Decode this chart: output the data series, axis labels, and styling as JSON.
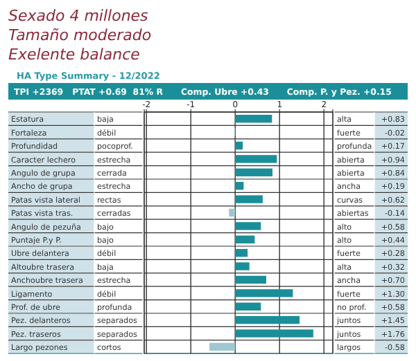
{
  "chart_data": {
    "type": "bar",
    "orientation": "horizontal",
    "title": "HA Type Summary - 12/2022",
    "subtitle": "TPI +2369   PTAT +0.69  81% R      Comp. Ubre +0.43      Comp. P. y Pez. +0.15",
    "categories": [
      "Estatura",
      "Fortaleza",
      "Profundidad",
      "Caracter lechero",
      "Angulo de grupa",
      "Ancho de grupa",
      "Patas vista lateral",
      "Patas vista tras.",
      "Angulo de pezuña",
      "Puntaje P.y P.",
      "Ubre delantera",
      "Altoubre trasera",
      "Anchoubre trasera",
      "Ligamento",
      "Prof. de ubre",
      "Pez. delanteros",
      "Pez. traseros",
      "Largo pezones"
    ],
    "values": [
      0.83,
      -0.02,
      0.17,
      0.94,
      0.84,
      0.19,
      0.62,
      -0.14,
      0.58,
      0.44,
      0.28,
      0.32,
      0.7,
      1.3,
      0.58,
      1.45,
      1.76,
      -0.58
    ],
    "value_labels": [
      "+0.83",
      "-0.02",
      "+0.17",
      "+0.94",
      "+0.84",
      "+0.19",
      "+0.62",
      "-0.14",
      "+0.58",
      "+0.44",
      "+0.28",
      "+0.32",
      "+0.70",
      "+1.30",
      "+0.58",
      "+1.45",
      "+1.76",
      "-0.58"
    ],
    "colors": [
      "#1b8f99",
      "#9fc7d0",
      "#1b8f99",
      "#1b8f99",
      "#1b8f99",
      "#1b8f99",
      "#1b8f99",
      "#9fc7d0",
      "#1b8f99",
      "#1b8f99",
      "#1b8f99",
      "#1b8f99",
      "#1b8f99",
      "#1b8f99",
      "#1b8f99",
      "#1b8f99",
      "#1b8f99",
      "#9fc7d0"
    ],
    "x2lim": [
      -2.05,
      2.2
    ],
    "x2ticks": [
      -2,
      -1,
      0,
      1,
      2
    ],
    "grid": "x",
    "annotations": [
      "Sexado 4 millones",
      "Tamaño moderado",
      "Exelente balance",
      "baja",
      "débil",
      "pocoprof.",
      "estrecha",
      "cerrada",
      "estrecha",
      "rectas",
      "cerradas",
      "bajo",
      "bajo",
      "débil",
      "baja",
      "estrecha",
      "débil",
      "profunda",
      "separados",
      "separados",
      "cortos",
      "alta",
      "fuerte",
      "profunda",
      "abierta",
      "abierta",
      "ancha",
      "curvas",
      "abiertas",
      "alto",
      "alto",
      "fuerte",
      "alta",
      "ancha",
      "fuerte",
      "no prof.",
      "juntos",
      "juntos",
      "largos"
    ]
  }
}
